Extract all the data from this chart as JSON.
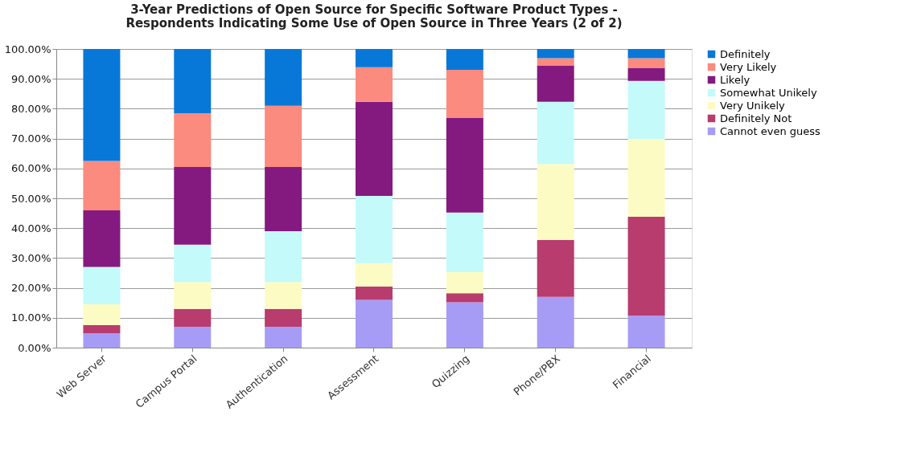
{
  "chart_data": {
    "type": "bar",
    "stacked": true,
    "title": [
      "3-Year Predictions of Open Source for Specific Software Product Types -",
      "Respondents Indicating Some Use of Open Source in Three Years (2 of 2)"
    ],
    "categories": [
      "Web Server",
      "Campus Portal",
      "Authentication",
      "Assessment",
      "Quizzing",
      "Phone/PBX",
      "Financial"
    ],
    "series": [
      {
        "name": "Cannot even guess",
        "color": "#a79cf5",
        "values": [
          4.8,
          7,
          7,
          16,
          15.2,
          17,
          10.7
        ]
      },
      {
        "name": "Definitely Not",
        "color": "#b83c6e",
        "values": [
          2.7,
          6,
          6,
          4.5,
          3,
          19,
          33.1
        ]
      },
      {
        "name": "Very Unikely",
        "color": "#fdfbc4",
        "values": [
          7,
          9,
          9,
          7.8,
          7.1,
          25.5,
          26.1
        ]
      },
      {
        "name": "Somewhat Unikely",
        "color": "#c4fafa",
        "values": [
          12.5,
          12.5,
          17,
          22.5,
          19.9,
          20.8,
          19.4
        ]
      },
      {
        "name": "Likely",
        "color": "#841a7f",
        "values": [
          19,
          26,
          21.5,
          31.5,
          31.7,
          12.2,
          4.4
        ]
      },
      {
        "name": "Very Likely",
        "color": "#fb8a7f",
        "values": [
          16.5,
          18,
          20.5,
          11.6,
          16.1,
          2.4,
          3.2
        ]
      },
      {
        "name": "Definitely",
        "color": "#0878d8",
        "values": [
          37.5,
          21.5,
          19,
          6.1,
          7,
          3.1,
          3.1
        ]
      }
    ],
    "ylim": [
      0,
      100
    ],
    "yticks": [
      {
        "value": 0,
        "label": "0.00%"
      },
      {
        "value": 10,
        "label": "10.00%"
      },
      {
        "value": 20,
        "label": "20.00%"
      },
      {
        "value": 30,
        "label": "30.00%"
      },
      {
        "value": 40,
        "label": "40.00%"
      },
      {
        "value": 50,
        "label": "50.00%"
      },
      {
        "value": 60,
        "label": "60.00%"
      },
      {
        "value": 70,
        "label": "70.00%"
      },
      {
        "value": 80,
        "label": "80.00%"
      },
      {
        "value": 90,
        "label": "90.00%"
      },
      {
        "value": 100,
        "label": "100.00%"
      }
    ],
    "grid": "y",
    "legend": "right"
  }
}
